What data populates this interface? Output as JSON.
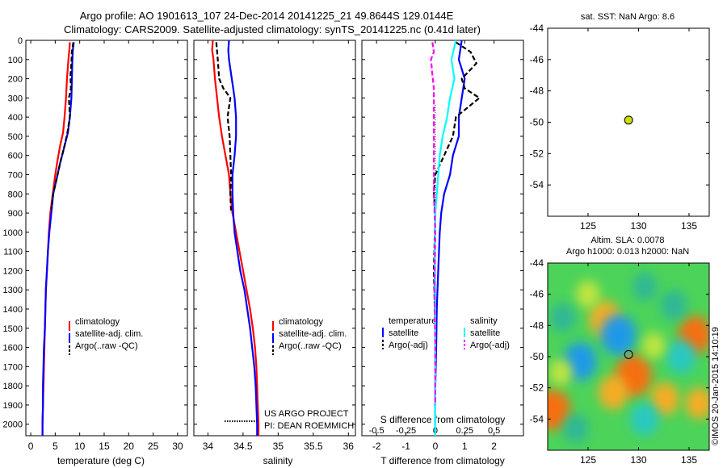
{
  "header": {
    "line1": "Argo profile: AO 1901613_107 24-Dec-2014 20141225_21 49.8644S 129.0144E",
    "line2": "Climatology: CARS2009. Satellite-adjusted climatology: synTS_20141225.nc (0.41d later)"
  },
  "colors": {
    "climatology": "#ff0000",
    "satellite": "#0000ff",
    "argo": "#000000",
    "satellite_salinity": "#00ffff",
    "argo_salinity_diff": "#ff00ff",
    "marker": "#ccdd00"
  },
  "chart_data": [
    {
      "id": "temperature",
      "type": "line",
      "xlabel": "temperature (deg C)",
      "ylabel": "",
      "xlim": [
        -1,
        32
      ],
      "ylim": [
        2060,
        0
      ],
      "xticks": [
        0,
        5,
        10,
        15,
        20,
        25,
        30
      ],
      "yticks": [
        0,
        100,
        200,
        300,
        400,
        500,
        600,
        700,
        800,
        900,
        1000,
        1100,
        1200,
        1300,
        1400,
        1500,
        1600,
        1700,
        1800,
        1900,
        2000
      ],
      "legend": [
        "climatology",
        "satellite-adj. clim.",
        "Argo(..raw -QC)"
      ],
      "series": [
        {
          "name": "climatology",
          "style": "solid",
          "color": "#ff0000",
          "points": [
            [
              8.0,
              10
            ],
            [
              7.9,
              50
            ],
            [
              7.7,
              100
            ],
            [
              7.4,
              200
            ],
            [
              7.2,
              300
            ],
            [
              6.9,
              400
            ],
            [
              6.6,
              480
            ],
            [
              6.0,
              550
            ],
            [
              5.5,
              620
            ],
            [
              5.0,
              700
            ],
            [
              4.5,
              800
            ],
            [
              4.0,
              900
            ],
            [
              3.7,
              1000
            ],
            [
              3.5,
              1100
            ],
            [
              3.3,
              1200
            ],
            [
              3.1,
              1300
            ],
            [
              3.0,
              1400
            ],
            [
              2.9,
              1500
            ],
            [
              2.8,
              1600
            ],
            [
              2.7,
              1700
            ],
            [
              2.6,
              1800
            ],
            [
              2.5,
              1900
            ],
            [
              2.4,
              2000
            ],
            [
              2.4,
              2060
            ]
          ]
        },
        {
          "name": "satellite-adj. clim.",
          "style": "solid",
          "color": "#0000ff",
          "points": [
            [
              8.8,
              10
            ],
            [
              8.6,
              50
            ],
            [
              8.5,
              100
            ],
            [
              8.4,
              200
            ],
            [
              8.3,
              300
            ],
            [
              8.0,
              400
            ],
            [
              7.6,
              480
            ],
            [
              6.8,
              560
            ],
            [
              6.0,
              640
            ],
            [
              5.3,
              720
            ],
            [
              4.6,
              800
            ],
            [
              4.2,
              900
            ],
            [
              3.8,
              1000
            ],
            [
              3.5,
              1100
            ],
            [
              3.3,
              1200
            ],
            [
              3.1,
              1300
            ],
            [
              3.0,
              1400
            ],
            [
              2.9,
              1500
            ],
            [
              2.7,
              1600
            ],
            [
              2.6,
              1700
            ],
            [
              2.5,
              1800
            ],
            [
              2.5,
              1900
            ],
            [
              2.4,
              2000
            ],
            [
              2.4,
              2060
            ]
          ]
        },
        {
          "name": "Argo(..raw -QC)",
          "style": "dashed",
          "color": "#000000",
          "points": [
            [
              8.7,
              10
            ],
            [
              8.4,
              60
            ],
            [
              8.3,
              120
            ],
            [
              8.1,
              180
            ],
            [
              8.2,
              250
            ],
            [
              7.8,
              300
            ],
            [
              8.0,
              400
            ],
            [
              7.5,
              480
            ],
            [
              6.8,
              560
            ],
            [
              6.0,
              640
            ],
            [
              5.3,
              720
            ],
            [
              4.6,
              800
            ],
            [
              4.2,
              880
            ]
          ]
        }
      ]
    },
    {
      "id": "salinity",
      "type": "line",
      "xlabel": "salinity",
      "ylabel": "",
      "xlim": [
        33.8,
        36.1
      ],
      "ylim": [
        2060,
        0
      ],
      "xticks": [
        34,
        34.5,
        35,
        35.5,
        36
      ],
      "legend": [
        "climatology",
        "satellite-adj. clim.",
        "Argo(..raw -QC)"
      ],
      "annotation": [
        "US ARGO PROJECT",
        "PI: DEAN ROEMMICH"
      ],
      "series": [
        {
          "name": "climatology",
          "style": "solid",
          "color": "#ff0000",
          "points": [
            [
              34.07,
              0
            ],
            [
              34.06,
              50
            ],
            [
              34.08,
              100
            ],
            [
              34.1,
              200
            ],
            [
              34.13,
              300
            ],
            [
              34.16,
              400
            ],
            [
              34.2,
              500
            ],
            [
              34.25,
              600
            ],
            [
              34.3,
              700
            ],
            [
              34.32,
              800
            ],
            [
              34.35,
              900
            ],
            [
              34.4,
              1000
            ],
            [
              34.45,
              1100
            ],
            [
              34.5,
              1200
            ],
            [
              34.55,
              1300
            ],
            [
              34.6,
              1400
            ],
            [
              34.64,
              1500
            ],
            [
              34.67,
              1600
            ],
            [
              34.69,
              1700
            ],
            [
              34.7,
              1800
            ],
            [
              34.71,
              1900
            ],
            [
              34.72,
              2000
            ],
            [
              34.72,
              2060
            ]
          ]
        },
        {
          "name": "satellite-adj. clim.",
          "style": "solid",
          "color": "#0000ff",
          "points": [
            [
              34.3,
              0
            ],
            [
              34.29,
              50
            ],
            [
              34.3,
              100
            ],
            [
              34.32,
              150
            ],
            [
              34.36,
              250
            ],
            [
              34.38,
              300
            ],
            [
              34.4,
              400
            ],
            [
              34.4,
              500
            ],
            [
              34.38,
              600
            ],
            [
              34.35,
              700
            ],
            [
              34.35,
              800
            ],
            [
              34.36,
              900
            ],
            [
              34.38,
              1000
            ],
            [
              34.42,
              1100
            ],
            [
              34.46,
              1200
            ],
            [
              34.52,
              1300
            ],
            [
              34.56,
              1400
            ],
            [
              34.6,
              1500
            ],
            [
              34.63,
              1600
            ],
            [
              34.66,
              1700
            ],
            [
              34.68,
              1800
            ],
            [
              34.69,
              1900
            ],
            [
              34.7,
              2000
            ],
            [
              34.7,
              2060
            ]
          ]
        },
        {
          "name": "Argo(..raw -QC)",
          "style": "dashed",
          "color": "#000000",
          "points": [
            [
              34.12,
              10
            ],
            [
              34.14,
              100
            ],
            [
              34.16,
              200
            ],
            [
              34.22,
              250
            ],
            [
              34.32,
              300
            ],
            [
              34.28,
              400
            ],
            [
              34.31,
              500
            ],
            [
              34.32,
              600
            ],
            [
              34.33,
              700
            ],
            [
              34.32,
              800
            ],
            [
              34.33,
              900
            ]
          ]
        }
      ]
    },
    {
      "id": "difference",
      "type": "line",
      "xlabel": "T difference from climatology",
      "xlabel_top": "S difference from climatology",
      "xlim": [
        -2.5,
        3.0
      ],
      "ylim": [
        2060,
        0
      ],
      "xticks": [
        -2,
        -1,
        0,
        1,
        2
      ],
      "xticks_top": [
        "-0.5",
        "-0.25",
        "0",
        "0.25",
        "0.5"
      ],
      "legend": {
        "temperature_title": "temperature",
        "salinity_title": "salinity",
        "temperature": [
          "satellite",
          "Argo(-adj)"
        ],
        "salinity": [
          "satellite",
          "Argo(-adj)"
        ]
      },
      "series": [
        {
          "name": "temperature satellite",
          "style": "solid",
          "color": "#0000ff",
          "points": [
            [
              0.9,
              0
            ],
            [
              0.8,
              100
            ],
            [
              1.0,
              200
            ],
            [
              0.8,
              400
            ],
            [
              0.8,
              500
            ],
            [
              0.6,
              600
            ],
            [
              0.5,
              700
            ],
            [
              0.3,
              800
            ],
            [
              0.2,
              900
            ],
            [
              0.15,
              1000
            ],
            [
              0.1,
              1200
            ],
            [
              0.05,
              1400
            ],
            [
              0.03,
              1600
            ],
            [
              0.0,
              1800
            ],
            [
              0.0,
              2060
            ]
          ]
        },
        {
          "name": "temperature Argo(-adj)",
          "style": "dashed",
          "color": "#000000",
          "points": [
            [
              0.7,
              10
            ],
            [
              1.2,
              60
            ],
            [
              1.4,
              120
            ],
            [
              0.9,
              200
            ],
            [
              1.0,
              250
            ],
            [
              1.5,
              300
            ],
            [
              0.7,
              400
            ],
            [
              0.6,
              500
            ],
            [
              0.3,
              600
            ],
            [
              0.0,
              700
            ],
            [
              -0.05,
              800
            ],
            [
              0.0,
              900
            ],
            [
              -0.05,
              1200
            ],
            [
              0.0,
              1500
            ],
            [
              0.0,
              1800
            ],
            [
              0.0,
              2000
            ]
          ]
        },
        {
          "name": "salinity satellite",
          "style": "solid",
          "color": "#00ffff",
          "points": [
            [
              0.7,
              0
            ],
            [
              0.55,
              100
            ],
            [
              0.65,
              200
            ],
            [
              0.5,
              300
            ],
            [
              0.4,
              400
            ],
            [
              0.25,
              500
            ],
            [
              0.15,
              600
            ],
            [
              0.1,
              700
            ],
            [
              0.05,
              800
            ],
            [
              0.0,
              900
            ],
            [
              -0.02,
              1100
            ],
            [
              0.0,
              1400
            ],
            [
              0.0,
              1700
            ],
            [
              0.0,
              2060
            ]
          ]
        },
        {
          "name": "salinity Argo(-adj)",
          "style": "dashed",
          "color": "#ff00ff",
          "points": [
            [
              -0.1,
              10
            ],
            [
              -0.05,
              60
            ],
            [
              -0.15,
              100
            ],
            [
              -0.1,
              180
            ],
            [
              -0.05,
              250
            ],
            [
              -0.05,
              500
            ],
            [
              -0.05,
              800
            ],
            [
              0.0,
              1000
            ],
            [
              -0.03,
              1300
            ],
            [
              0.0,
              1600
            ],
            [
              0.0,
              1900
            ]
          ]
        }
      ]
    },
    {
      "id": "map_sst",
      "type": "scatter",
      "title": "sat. SST: NaN Argo: 8.6",
      "xlim": [
        121,
        137
      ],
      "ylim": [
        -56,
        -44
      ],
      "xticks": [
        125,
        130,
        135
      ],
      "yticks": [
        -44,
        -46,
        -48,
        -50,
        -52,
        -54
      ],
      "points": [
        [
          129.0144,
          -49.8644
        ]
      ]
    },
    {
      "id": "map_sla",
      "type": "heatmap",
      "title_line1": "Altim. SLA: 0.0078",
      "title_line2": "Argo h1000: 0.013 h2000: NaN",
      "xlim": [
        121,
        137
      ],
      "ylim": [
        -56,
        -44
      ],
      "xticks": [
        125,
        130,
        135
      ],
      "yticks": [
        -44,
        -46,
        -48,
        -50,
        -52,
        -54
      ],
      "points": [
        [
          129.0144,
          -49.8644
        ]
      ],
      "blobs": [
        {
          "x": 129.5,
          "y": -51.2,
          "v": 0.9
        },
        {
          "x": 121.5,
          "y": -53.4,
          "v": 0.85
        },
        {
          "x": 126.7,
          "y": -47.6,
          "v": 0.7
        },
        {
          "x": 135.6,
          "y": -48.6,
          "v": 0.75
        },
        {
          "x": 132.6,
          "y": -52.7,
          "v": 0.55
        },
        {
          "x": 127.5,
          "y": -52.3,
          "v": 0.6
        },
        {
          "x": 136.0,
          "y": -53.0,
          "v": 0.5
        },
        {
          "x": 125.0,
          "y": -46.0,
          "v": 0.35
        },
        {
          "x": 128.0,
          "y": -48.6,
          "v": -0.85
        },
        {
          "x": 124.2,
          "y": -50.3,
          "v": -0.75
        },
        {
          "x": 134.2,
          "y": -50.0,
          "v": -0.6
        },
        {
          "x": 130.6,
          "y": -54.0,
          "v": -0.55
        },
        {
          "x": 133.5,
          "y": -46.7,
          "v": -0.45
        },
        {
          "x": 122.5,
          "y": -47.5,
          "v": -0.4
        },
        {
          "x": 130.6,
          "y": -45.5,
          "v": -0.35
        },
        {
          "x": 123.8,
          "y": -54.6,
          "v": -0.4
        },
        {
          "x": 131.5,
          "y": -49.3,
          "v": 0.3
        },
        {
          "x": 122.3,
          "y": -51.0,
          "v": 0.3
        }
      ]
    }
  ],
  "credit": "©IMOS 20-Jan-2015 14:10:19"
}
